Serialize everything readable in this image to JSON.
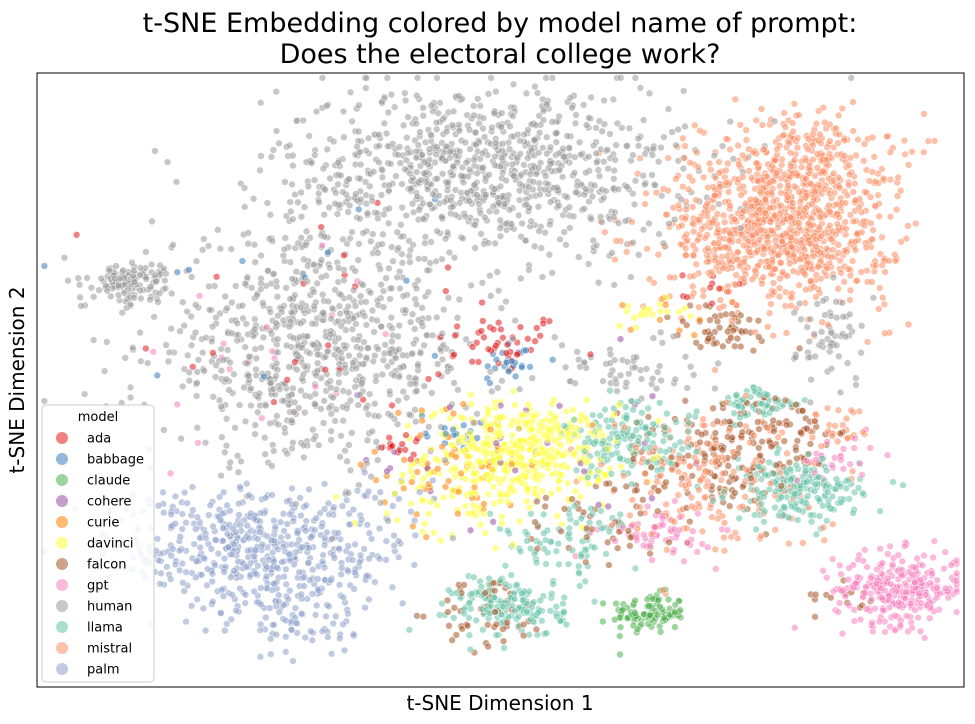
{
  "chart_data": {
    "type": "scatter",
    "title_lines": [
      "t-SNE Embedding colored by model name of prompt:",
      "Does the electoral college work?"
    ],
    "xlabel": "t-SNE Dimension 1",
    "ylabel": "t-SNE Dimension 2",
    "xlim": [
      0,
      100
    ],
    "ylim": [
      0,
      100
    ],
    "ticks_visible": false,
    "grid": false,
    "legend": {
      "title": "model",
      "placement": "lower-left"
    },
    "series": [
      {
        "name": "ada",
        "color": "#e41a1c",
        "clusters": [
          {
            "cx": 50,
            "cy": 56,
            "sx": 3.5,
            "sy": 2.5,
            "n": 45
          },
          {
            "cx": 40,
            "cy": 39,
            "sx": 1.5,
            "sy": 1.2,
            "n": 15
          },
          {
            "cx": 72,
            "cy": 65,
            "sx": 3,
            "sy": 1.5,
            "n": 10
          },
          {
            "cx": 30,
            "cy": 60,
            "sx": 10,
            "sy": 12,
            "n": 25
          }
        ]
      },
      {
        "name": "babbage",
        "color": "#377eb8",
        "clusters": [
          {
            "cx": 51,
            "cy": 53,
            "sx": 2,
            "sy": 2,
            "n": 25
          },
          {
            "cx": 45,
            "cy": 41,
            "sx": 2,
            "sy": 1.5,
            "n": 15
          },
          {
            "cx": 30,
            "cy": 65,
            "sx": 15,
            "sy": 12,
            "n": 12
          }
        ]
      },
      {
        "name": "claude",
        "color": "#4daf4a",
        "clusters": [
          {
            "cx": 66,
            "cy": 12,
            "sx": 2,
            "sy": 1.6,
            "n": 100
          }
        ]
      },
      {
        "name": "cohere",
        "color": "#984ea3",
        "clusters": [
          {
            "cx": 52,
            "cy": 38,
            "sx": 8,
            "sy": 8,
            "n": 35
          }
        ]
      },
      {
        "name": "curie",
        "color": "#ff7f00",
        "clusters": [
          {
            "cx": 45,
            "cy": 36,
            "sx": 4,
            "sy": 5,
            "n": 60
          },
          {
            "cx": 68,
            "cy": 61,
            "sx": 3,
            "sy": 2,
            "n": 10
          }
        ]
      },
      {
        "name": "davinci",
        "color": "#ffff33",
        "clusters": [
          {
            "cx": 52,
            "cy": 38,
            "sx": 5,
            "sy": 4,
            "n": 420
          },
          {
            "cx": 66,
            "cy": 61,
            "sx": 2,
            "sy": 1,
            "n": 20
          },
          {
            "cx": 45,
            "cy": 28,
            "sx": 5,
            "sy": 3,
            "n": 40
          }
        ]
      },
      {
        "name": "falcon",
        "color": "#a65628",
        "clusters": [
          {
            "cx": 74,
            "cy": 38,
            "sx": 5,
            "sy": 5,
            "n": 120
          },
          {
            "cx": 80,
            "cy": 42,
            "sx": 3,
            "sy": 3,
            "n": 60
          },
          {
            "cx": 74,
            "cy": 58,
            "sx": 3,
            "sy": 2,
            "n": 50
          },
          {
            "cx": 49,
            "cy": 12,
            "sx": 3,
            "sy": 3,
            "n": 50
          },
          {
            "cx": 62,
            "cy": 28,
            "sx": 5,
            "sy": 4,
            "n": 50
          },
          {
            "cx": 88,
            "cy": 15,
            "sx": 2,
            "sy": 1.5,
            "n": 15
          }
        ]
      },
      {
        "name": "gpt",
        "color": "#f781bf",
        "clusters": [
          {
            "cx": 93,
            "cy": 16,
            "sx": 3.5,
            "sy": 3,
            "n": 280
          },
          {
            "cx": 67,
            "cy": 25,
            "sx": 3,
            "sy": 2,
            "n": 60
          },
          {
            "cx": 86,
            "cy": 38,
            "sx": 2,
            "sy": 3,
            "n": 30
          },
          {
            "cx": 25,
            "cy": 48,
            "sx": 10,
            "sy": 10,
            "n": 20
          }
        ]
      },
      {
        "name": "human",
        "color": "#999999",
        "clusters": [
          {
            "cx": 48,
            "cy": 84,
            "sx": 11,
            "sy": 7,
            "n": 950
          },
          {
            "cx": 30,
            "cy": 55,
            "sx": 9,
            "sy": 9,
            "n": 800
          },
          {
            "cx": 10,
            "cy": 66,
            "sx": 2.2,
            "sy": 1.6,
            "n": 120
          },
          {
            "cx": 63,
            "cy": 52,
            "sx": 4,
            "sy": 3,
            "n": 60
          },
          {
            "cx": 86,
            "cy": 57,
            "sx": 2,
            "sy": 4,
            "n": 60
          }
        ]
      },
      {
        "name": "llama",
        "color": "#66c2a5",
        "clusters": [
          {
            "cx": 51,
            "cy": 13,
            "sx": 3,
            "sy": 2.5,
            "n": 160
          },
          {
            "cx": 64,
            "cy": 40,
            "sx": 3.5,
            "sy": 3,
            "n": 150
          },
          {
            "cx": 82,
            "cy": 32,
            "sx": 3.5,
            "sy": 2.5,
            "n": 200
          },
          {
            "cx": 78,
            "cy": 46,
            "sx": 2,
            "sy": 1.5,
            "n": 60
          },
          {
            "cx": 57,
            "cy": 24,
            "sx": 4,
            "sy": 3,
            "n": 80
          }
        ]
      },
      {
        "name": "mistral",
        "color": "#fc8d62",
        "clusters": [
          {
            "cx": 80,
            "cy": 74,
            "sx": 6,
            "sy": 6,
            "n": 850
          },
          {
            "cx": 82,
            "cy": 86,
            "sx": 5,
            "sy": 4,
            "n": 250
          },
          {
            "cx": 72,
            "cy": 34,
            "sx": 6,
            "sy": 6,
            "n": 200
          },
          {
            "cx": 86,
            "cy": 42,
            "sx": 2,
            "sy": 2,
            "n": 30
          }
        ]
      },
      {
        "name": "palm",
        "color": "#8da0cb",
        "clusters": [
          {
            "cx": 24,
            "cy": 23,
            "sx": 8,
            "sy": 5,
            "n": 500
          },
          {
            "cx": 28,
            "cy": 12,
            "sx": 4,
            "sy": 4,
            "n": 100
          }
        ]
      }
    ]
  }
}
